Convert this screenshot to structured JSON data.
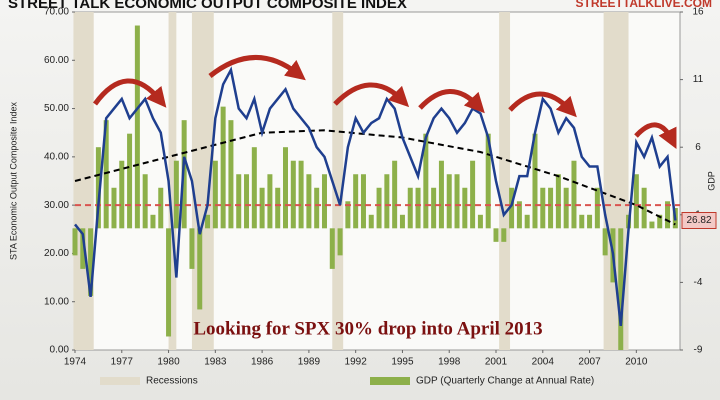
{
  "chart_data": {
    "type": "combo",
    "title": "STREET TALK ECONOMIC OUTPUT COMPOSITE INDEX",
    "source": "STREETTALKLIVE.COM",
    "y_label": "STA Economic Output Composite Index",
    "y2_label": "GDP",
    "annotation": "Looking for SPX 30% drop into April 2013",
    "xlim": [
      1974,
      2012.8
    ],
    "xticks": [
      1974,
      1977,
      1980,
      1983,
      1986,
      1989,
      1992,
      1995,
      1998,
      2001,
      2004,
      2007,
      2010
    ],
    "ylim": [
      0,
      70
    ],
    "yticks": [
      {
        "value": 0,
        "label": "0.00"
      },
      {
        "value": 10,
        "label": "10.00"
      },
      {
        "value": 20,
        "label": "20.00"
      },
      {
        "value": 30,
        "label": "30.00"
      },
      {
        "value": 40,
        "label": "40.00"
      },
      {
        "value": 50,
        "label": "50.00"
      },
      {
        "value": 60,
        "label": "60.00"
      },
      {
        "value": 70,
        "label": "70.00"
      }
    ],
    "y2lim": [
      -9,
      16
    ],
    "y2ticks": [
      -9,
      -4,
      1,
      6,
      11,
      16
    ],
    "x": [
      1974,
      1974.5,
      1975,
      1975.5,
      1976,
      1976.5,
      1977,
      1977.5,
      1978,
      1978.5,
      1979,
      1979.5,
      1980,
      1980.5,
      1981,
      1981.5,
      1982,
      1982.5,
      1983,
      1983.5,
      1984,
      1984.5,
      1985,
      1985.5,
      1986,
      1986.5,
      1987,
      1987.5,
      1988,
      1988.5,
      1989,
      1989.5,
      1990,
      1990.5,
      1991,
      1991.5,
      1992,
      1992.5,
      1993,
      1993.5,
      1994,
      1994.5,
      1995,
      1995.5,
      1996,
      1996.5,
      1997,
      1997.5,
      1998,
      1998.5,
      1999,
      1999.5,
      2000,
      2000.5,
      2001,
      2001.5,
      2002,
      2002.5,
      2003,
      2003.5,
      2004,
      2004.5,
      2005,
      2005.5,
      2006,
      2006.5,
      2007,
      2007.5,
      2008,
      2008.5,
      2009,
      2009.5,
      2010,
      2010.5,
      2011,
      2011.5,
      2012,
      2012.5
    ],
    "line": {
      "color": "#1f3f8f",
      "values": [
        26,
        24,
        11,
        30,
        48,
        50,
        52,
        48,
        50,
        52,
        48,
        45,
        35,
        15,
        40,
        35,
        24,
        30,
        48,
        55,
        58,
        50,
        48,
        52,
        45,
        50,
        52,
        54,
        50,
        48,
        46,
        42,
        40,
        35,
        30,
        42,
        48,
        45,
        47,
        48,
        52,
        50,
        44,
        40,
        36,
        44,
        48,
        50,
        48,
        45,
        47,
        50,
        49,
        44,
        35,
        28,
        30,
        36,
        36,
        45,
        52,
        50,
        45,
        48,
        46,
        40,
        38,
        38,
        28,
        20,
        5,
        25,
        43,
        40,
        44,
        38,
        40,
        26.82
      ]
    },
    "series": [
      {
        "name": "GDP (Quarterly Change at Annual Rate)",
        "color": "#8db04a",
        "axis": "y2",
        "values": [
          -2,
          -3,
          -5,
          6,
          8,
          3,
          5,
          7,
          15,
          4,
          1,
          3,
          -8,
          5,
          8,
          -3,
          -6,
          1,
          5,
          9,
          8,
          4,
          4,
          6,
          3,
          4,
          3,
          6,
          5,
          5,
          4,
          3,
          4,
          -3,
          -2,
          2,
          4,
          4,
          1,
          3,
          4,
          5,
          1,
          3,
          3,
          7,
          3,
          5,
          4,
          4,
          3,
          5,
          1,
          7,
          -1,
          -1,
          3,
          2,
          1,
          7,
          3,
          3,
          4,
          3,
          5,
          1,
          1,
          3,
          -2,
          -4,
          -9,
          1,
          4,
          3,
          0.5,
          1,
          2,
          1.5
        ]
      }
    ],
    "recessions": {
      "name": "Recessions",
      "color": "#e2dccb",
      "ranges": [
        [
          1973.9,
          1975.2
        ],
        [
          1980,
          1980.5
        ],
        [
          1981.5,
          1982.9
        ],
        [
          1990.5,
          1991.2
        ],
        [
          2001.2,
          2001.9
        ],
        [
          2007.9,
          2009.5
        ]
      ]
    },
    "trend": {
      "color": "#000000",
      "x": [
        1974,
        1980,
        1986,
        1990,
        1995,
        2000,
        2005,
        2010,
        2012.5
      ],
      "values": [
        35,
        40,
        45,
        45.5,
        44,
        41,
        36,
        30,
        26
      ]
    },
    "reference_line": 30,
    "reference_color": "#d9534f"
  }
}
